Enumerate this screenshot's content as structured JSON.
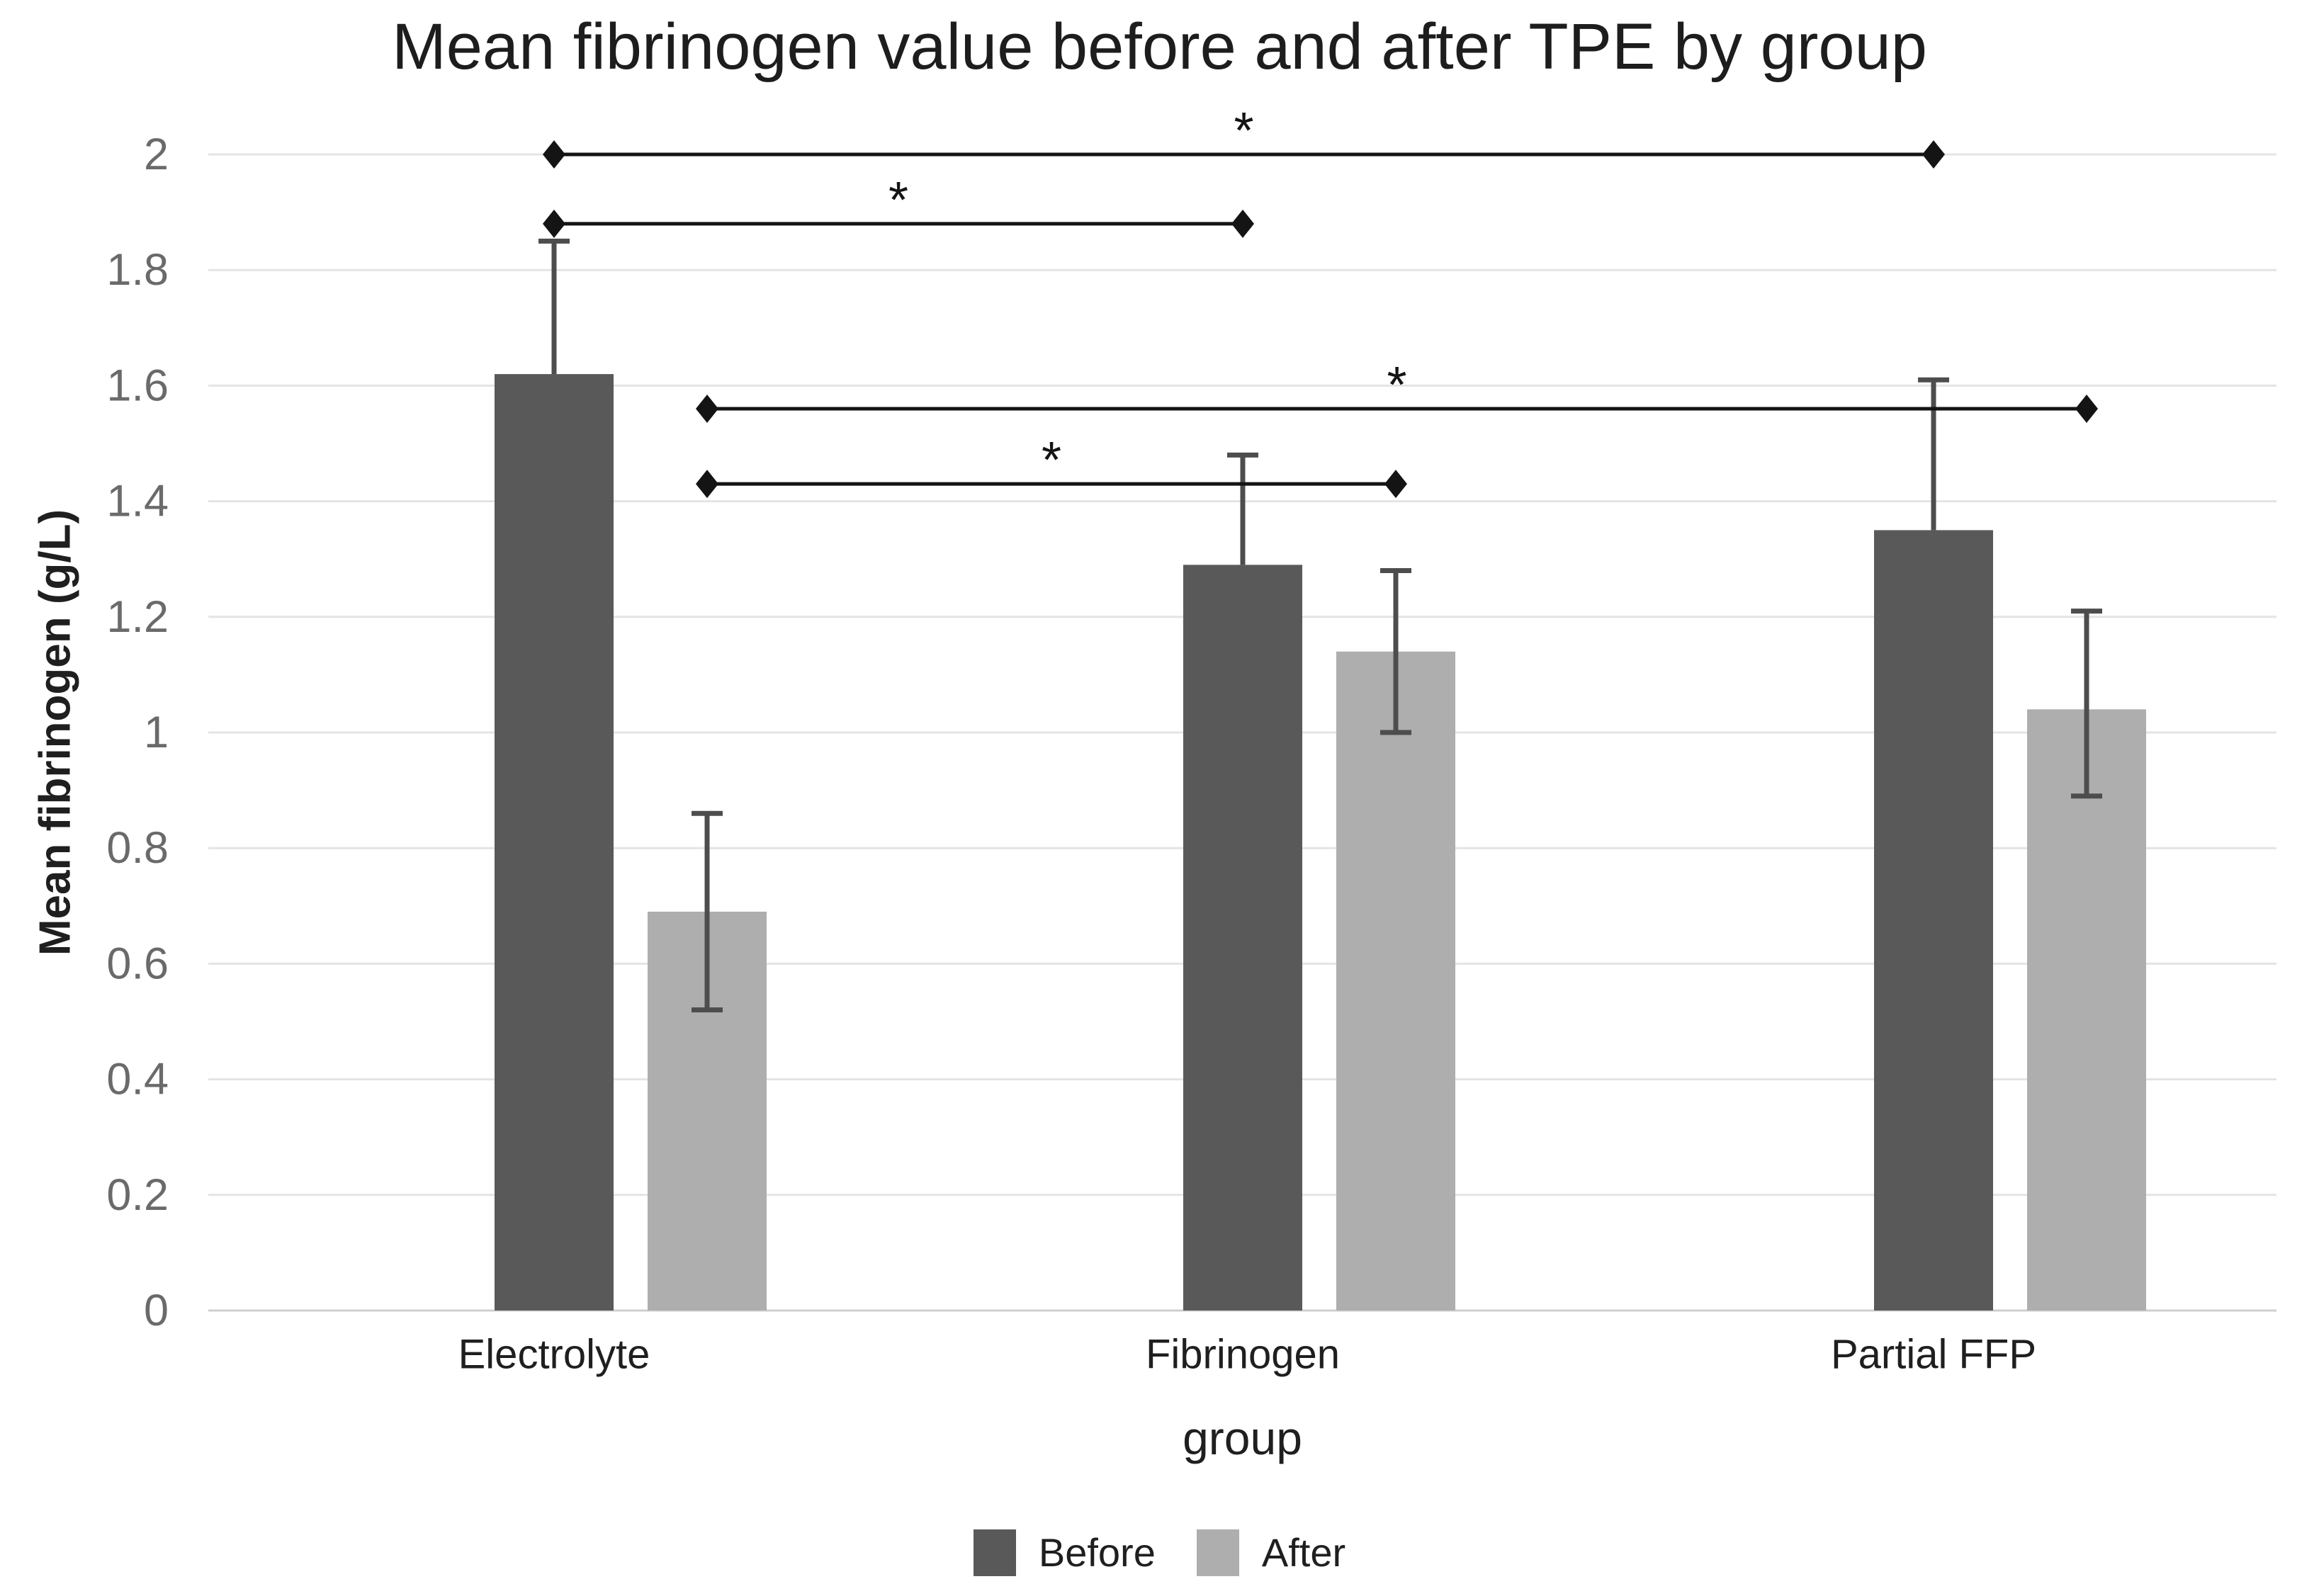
{
  "figure": {
    "background": "#ffffff"
  },
  "chart_data": {
    "type": "bar",
    "title": "Mean fibrinogen value before and after TPE by group",
    "xlabel": "group",
    "ylabel": "Mean fibrinogen (g/L)",
    "categories": [
      "Electrolyte",
      "Fibrinogen",
      "Partial FFP"
    ],
    "series": [
      {
        "name": "Before",
        "color": "#595959",
        "values": [
          1.62,
          1.29,
          1.35
        ],
        "error_low": [
          null,
          null,
          null
        ],
        "error_high": [
          1.85,
          1.48,
          1.61
        ]
      },
      {
        "name": "After",
        "color": "#aeaeae",
        "values": [
          0.69,
          1.14,
          1.04
        ],
        "error_low": [
          0.52,
          1.0,
          0.89
        ],
        "error_high": [
          0.86,
          1.28,
          1.21
        ]
      }
    ],
    "ylim": [
      0,
      2
    ],
    "yticks": [
      "0",
      "0.2",
      "0.4",
      "0.6",
      "0.8",
      "1",
      "1.2",
      "1.4",
      "1.6",
      "1.8",
      "2"
    ],
    "grid": true,
    "legend_position": "bottom",
    "significance_brackets": [
      {
        "from_category": 0,
        "from_series": 0,
        "to_category": 2,
        "to_series": 0,
        "value": 2.0,
        "label": "*"
      },
      {
        "from_category": 0,
        "from_series": 0,
        "to_category": 1,
        "to_series": 0,
        "value": 1.88,
        "label": "*"
      },
      {
        "from_category": 0,
        "from_series": 1,
        "to_category": 2,
        "to_series": 1,
        "value": 1.56,
        "label": "*"
      },
      {
        "from_category": 0,
        "from_series": 1,
        "to_category": 1,
        "to_series": 1,
        "value": 1.43,
        "label": "*"
      }
    ],
    "error_bar_color": "#4d4d4d",
    "significance_color": "#141414",
    "gridline_color": "#e4e4e4",
    "axis_line_color": "#cfcfcf",
    "tick_label_color": "#6a6a6a",
    "category_label_color": "#1f1f1f"
  }
}
